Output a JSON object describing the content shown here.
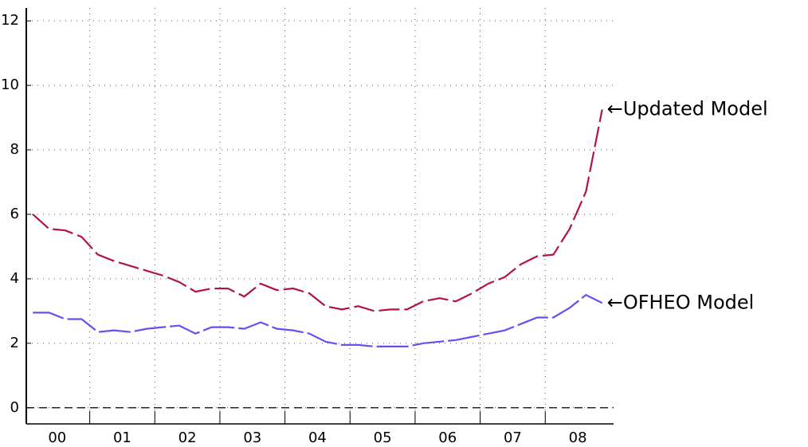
{
  "chart_data": {
    "type": "line",
    "x": [
      0.125,
      0.375,
      0.625,
      0.875,
      1.125,
      1.375,
      1.625,
      1.875,
      2.125,
      2.375,
      2.625,
      2.875,
      3.125,
      3.375,
      3.625,
      3.875,
      4.125,
      4.375,
      4.625,
      4.875,
      5.125,
      5.375,
      5.625,
      5.875,
      6.125,
      6.375,
      6.625,
      6.875,
      7.125,
      7.375,
      7.625,
      7.875,
      8.125,
      8.375,
      8.625,
      8.875
    ],
    "series": [
      {
        "name": "←Updated Model",
        "color": "#b0124a",
        "dash": "long",
        "values": [
          6.0,
          5.55,
          5.5,
          5.3,
          4.75,
          4.55,
          4.4,
          4.25,
          4.1,
          3.9,
          3.6,
          3.7,
          3.7,
          3.45,
          3.85,
          3.65,
          3.7,
          3.55,
          3.15,
          3.05,
          3.15,
          3.0,
          3.05,
          3.05,
          3.3,
          3.4,
          3.3,
          3.55,
          3.85,
          4.05,
          4.45,
          4.7,
          4.75,
          5.55,
          6.7,
          9.25
        ]
      },
      {
        "name": "←OFHEO Model",
        "color": "#6a4ef0",
        "dash": "short",
        "values": [
          2.95,
          2.95,
          2.75,
          2.75,
          2.35,
          2.4,
          2.35,
          2.45,
          2.5,
          2.55,
          2.3,
          2.5,
          2.5,
          2.45,
          2.65,
          2.45,
          2.4,
          2.3,
          2.05,
          1.95,
          1.95,
          1.9,
          1.9,
          1.9,
          2.0,
          2.05,
          2.1,
          2.2,
          2.3,
          2.4,
          2.6,
          2.8,
          2.8,
          3.1,
          3.5,
          3.25
        ]
      }
    ],
    "year_labels": [
      "00",
      "01",
      "02",
      "03",
      "04",
      "05",
      "06",
      "07",
      "08"
    ],
    "xlim": [
      0.025,
      9.05
    ],
    "xticks": [
      1,
      2,
      3,
      4,
      5,
      6,
      7,
      8
    ],
    "ylim": [
      -0.5,
      12.4
    ],
    "yticks": [
      0,
      2,
      4,
      6,
      8,
      10,
      12
    ],
    "zero_line": 0,
    "grid": true
  }
}
